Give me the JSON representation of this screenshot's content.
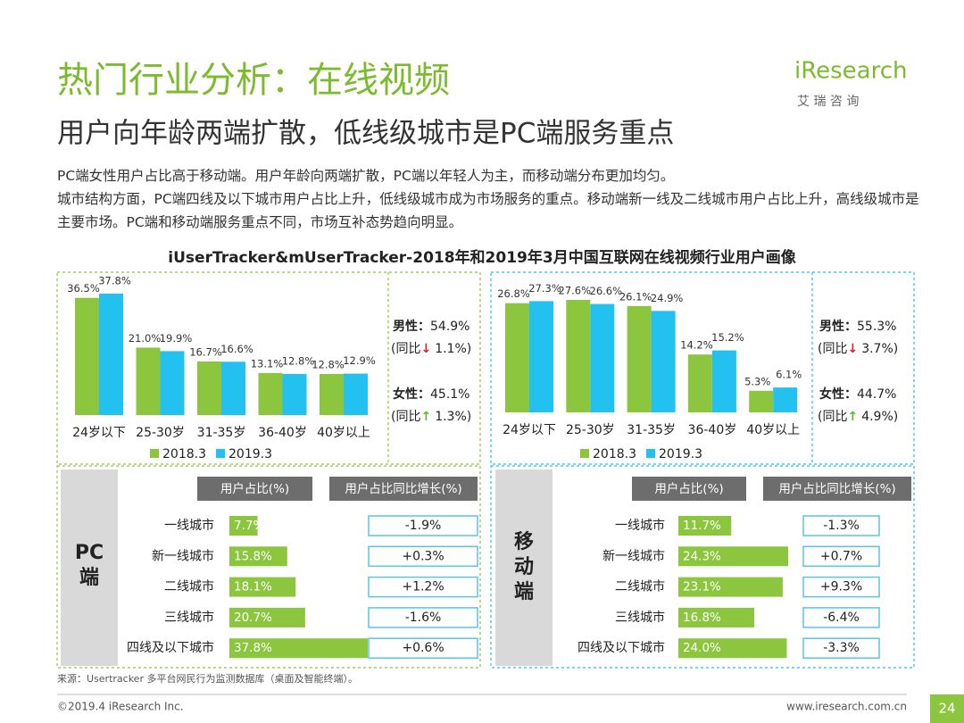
{
  "header": {
    "title": "热门行业分析：在线视频",
    "subtitle": "用户向年龄两端扩散，低线级城市是PC端服务重点"
  },
  "logo": {
    "name": "iResearch",
    "cn": "艾 瑞 咨 询"
  },
  "body": {
    "paragraphs": [
      "PC端女性用户占比高于移动端。用户年龄向两端扩散，PC端以年轻人为主，而移动端分布更加均匀。",
      "城市结构方面，PC端四线及以下城市用户占比上升，低线级城市成为市场服务的重点。移动端新一线及二线城市用户占比上升，高线级城市是主要市场。PC端和移动端服务重点不同，市场互补态势趋向明显。"
    ],
    "section_title": "iUserTracker&mUserTracker-2018年和2019年3月中国互联网在线视频行业用户画像"
  },
  "chart_data": [
    {
      "type": "bar",
      "categories": [
        "24岁以下",
        "25-30岁",
        "31-35岁",
        "36-40岁",
        "40岁以上"
      ],
      "series": [
        {
          "name": "2018.3",
          "color": "#8cc63e",
          "values": [
            36.5,
            21.0,
            16.7,
            13.1,
            12.8
          ],
          "value_labels": [
            "36.5%",
            "21.0%",
            "16.7%",
            "13.1%",
            "12.8%"
          ]
        },
        {
          "name": "2019.3",
          "color": "#22c1f0",
          "values": [
            37.8,
            19.9,
            16.6,
            12.8,
            12.9
          ],
          "value_labels": [
            "37.8%",
            "19.9%",
            "16.6%",
            "12.8%",
            "12.9%"
          ]
        }
      ],
      "gender": [
        {
          "label": "男性：",
          "value": "54.9%",
          "yoy_prefix": "(同比",
          "arrow": "↓",
          "arrow_color": "#e02020",
          "yoy": "1.1%)"
        },
        {
          "label": "女性：",
          "value": "45.1%",
          "yoy_prefix": "(同比",
          "arrow": "↑",
          "arrow_color": "#5cb82e",
          "yoy": "1.3%)"
        }
      ]
    },
    {
      "type": "bar",
      "categories": [
        "24岁以下",
        "25-30岁",
        "31-35岁",
        "36-40岁",
        "40岁以上"
      ],
      "series": [
        {
          "name": "2018.3",
          "color": "#8cc63e",
          "values": [
            26.8,
            27.6,
            26.1,
            14.2,
            5.3
          ],
          "value_labels": [
            "26.8%",
            "27.6%",
            "26.1%",
            "14.2%",
            "5.3%"
          ]
        },
        {
          "name": "2019.3",
          "color": "#22c1f0",
          "values": [
            27.3,
            26.6,
            24.9,
            15.2,
            6.1
          ],
          "value_labels": [
            "27.3%",
            "26.6%",
            "24.9%",
            "15.2%",
            "6.1%"
          ]
        }
      ],
      "gender": [
        {
          "label": "男性：",
          "value": "55.3%",
          "yoy_prefix": "(同比",
          "arrow": "↓",
          "arrow_color": "#e02020",
          "yoy": "3.7%)"
        },
        {
          "label": "女性：",
          "value": "44.7%",
          "yoy_prefix": "(同比",
          "arrow": "↑",
          "arrow_color": "#5cb82e",
          "yoy": "4.9%)"
        }
      ]
    },
    {
      "type": "hbar",
      "platform": "PC端",
      "share_header": "用户占比(%)",
      "yoy_header": "用户占比同比增长(%)",
      "color": "#8cc63e",
      "categories": [
        "一线城市",
        "新一线城市",
        "二线城市",
        "三线城市",
        "四线及以下城市"
      ],
      "values": [
        7.7,
        15.8,
        18.1,
        20.7,
        37.8
      ],
      "value_labels": [
        "7.7%",
        "15.8%",
        "18.1%",
        "20.7%",
        "37.8%"
      ],
      "yoy_labels": [
        "-1.9%",
        "+0.3%",
        "+1.2%",
        "-1.6%",
        "+0.6%"
      ]
    },
    {
      "type": "hbar",
      "platform": "移动端",
      "share_header": "用户占比(%)",
      "yoy_header": "用户占比同比增长(%)",
      "color": "#8cc63e",
      "categories": [
        "一线城市",
        "新一线城市",
        "二线城市",
        "三线城市",
        "四线及以下城市"
      ],
      "values": [
        11.7,
        24.3,
        23.1,
        16.8,
        24.0
      ],
      "value_labels": [
        "11.7%",
        "24.3%",
        "23.1%",
        "16.8%",
        "24.0%"
      ],
      "yoy_labels": [
        "-1.3%",
        "+0.7%",
        "+9.3%",
        "-6.4%",
        "-3.3%"
      ]
    }
  ],
  "footer": {
    "source": "来源：Usertracker 多平台网民行为监测数据库（桌面及智能终端）。",
    "copyright": "©2019.4 iResearch Inc.",
    "website": "www.iresearch.com.cn",
    "page": "24"
  }
}
